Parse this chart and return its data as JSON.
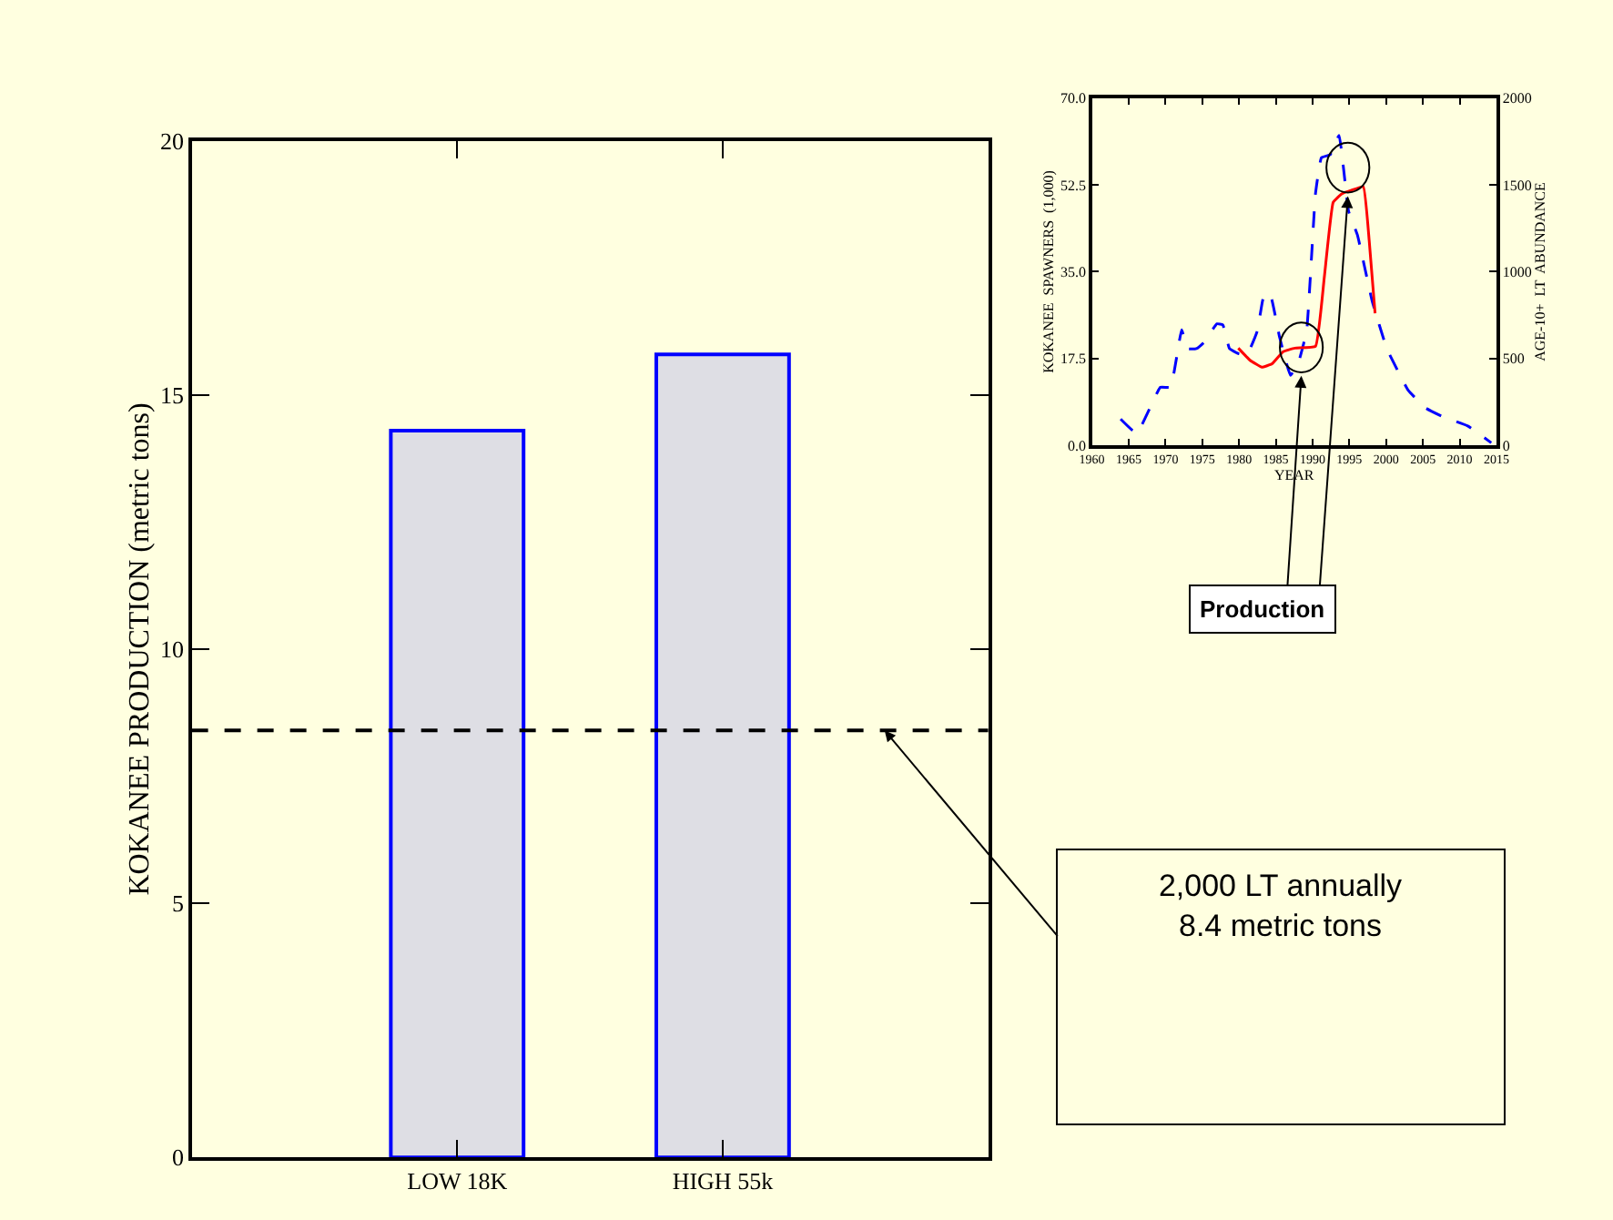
{
  "chart_data": [
    {
      "type": "bar",
      "categories": [
        "LOW 18K",
        "HIGH 55k"
      ],
      "values": [
        14.3,
        15.8
      ],
      "color": "#0000ff",
      "ylabel": "KOKANEE PRODUCTION (metric tons)",
      "ylim": [
        0,
        20
      ],
      "yticks": [
        0,
        5,
        10,
        15,
        20
      ],
      "grid": false,
      "ref_lines": [
        {
          "axis": "y",
          "value": 8.4,
          "label": "2,000 LT annually\n8.4 metric tons",
          "color": "#000000",
          "line_style": "dashed"
        }
      ]
    },
    {
      "type": "line",
      "xlabel": "YEAR",
      "ylabel": "KOKANEE  SPAWNERS  (1,000)",
      "y2label": "AGE-10+  LT  ABUNDANCE",
      "grid": false,
      "marker": "none",
      "xlim": [
        1960,
        2015
      ],
      "xticks": [
        1960,
        1965,
        1970,
        1975,
        1980,
        1985,
        1990,
        1995,
        2000,
        2005,
        2010,
        2015
      ],
      "ylim": [
        0,
        70
      ],
      "yticks": [
        {
          "value": 0,
          "label": "0.0"
        },
        17.5,
        {
          "value": 35,
          "label": "35.0"
        },
        52.5,
        {
          "value": 70,
          "label": "70.0"
        }
      ],
      "y2lim": [
        0,
        2000
      ],
      "y2ticks": [
        0,
        500,
        1000,
        1500,
        2000
      ],
      "series": [
        {
          "color": "#0000ff",
          "line_style": "dashed",
          "x": [
            1963.9,
            1966.1,
            1969.3,
            1970.7,
            1972.2,
            1973,
            1974.2,
            1975.2,
            1977,
            1977.8,
            1978.7,
            1979.9,
            1981.1,
            1982.5,
            1983.3,
            1984.2,
            1985.5,
            1987,
            1988.2,
            1989.2,
            1990.4,
            1991.2,
            1992.4,
            1993.6,
            1994.9,
            1996.1,
            1998.1,
            2000.1,
            2003,
            2005.4,
            2007.8,
            2011.1,
            2014.3
          ],
          "values": [
            5.3,
            2.4,
            11.7,
            11.7,
            23.3,
            19.5,
            19.5,
            20.7,
            24.5,
            24.3,
            19.5,
            18.5,
            18.3,
            23.1,
            29.7,
            30.7,
            21.9,
            14.1,
            17.3,
            23.1,
            50.8,
            58,
            58.6,
            62.5,
            47.2,
            42.4,
            29.1,
            19.5,
            11.1,
            7.5,
            5.7,
            3.9,
            0.5
          ]
        },
        {
          "color": "#ff0000",
          "line_style": "solid",
          "axis": "y2",
          "x": [
            1979.9,
            1981.5,
            1983.1,
            1984.5,
            1986,
            1987.6,
            1990.4,
            1991.6,
            1992.8,
            1994,
            1995.3,
            1996.9,
            1997.7,
            1998.5
          ],
          "values": [
            560,
            490,
            450,
            470,
            540,
            560,
            570,
            970,
            1400,
            1450,
            1470,
            1490,
            1180,
            760
          ]
        }
      ],
      "annotations": [
        "Production"
      ]
    }
  ]
}
